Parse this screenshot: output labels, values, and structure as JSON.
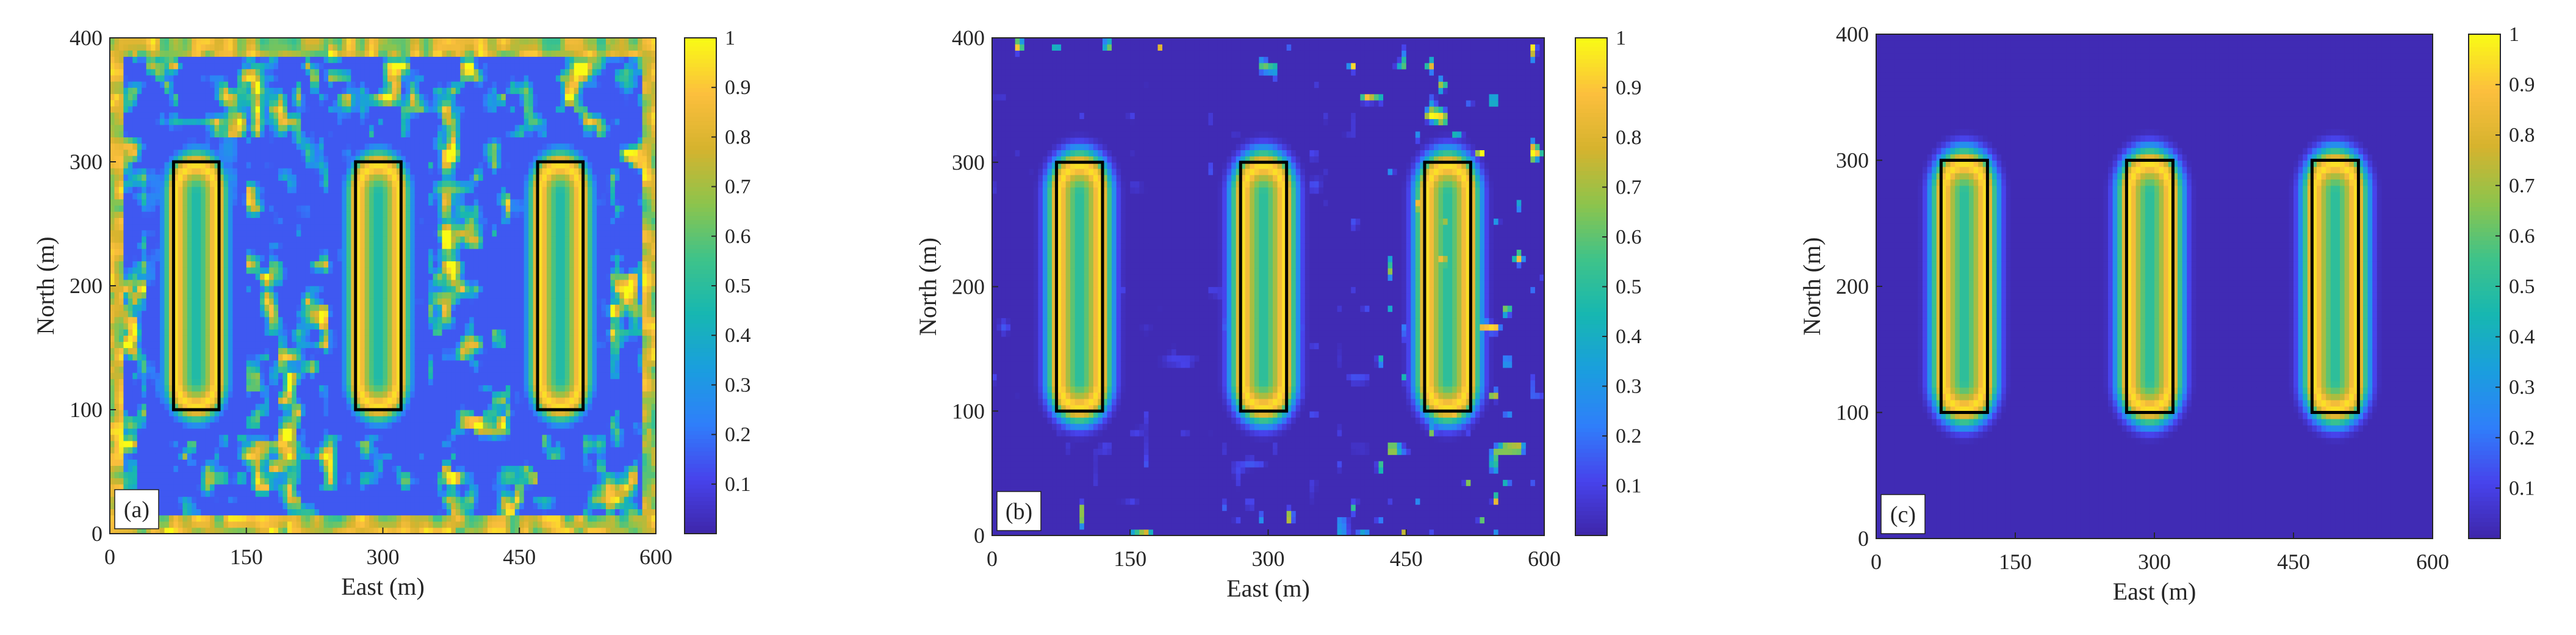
{
  "figure": {
    "panel_labels": [
      "(a)",
      "(b)",
      "(c)"
    ]
  },
  "colors": {
    "colormap": [
      "#3e26a8",
      "#4743ec",
      "#2f7ffa",
      "#1a9ede",
      "#17b7b1",
      "#3ec38a",
      "#8dc44c",
      "#d6b32e",
      "#fcbf3d",
      "#f9fb15"
    ],
    "target_outline": "#000000",
    "axis": "#262626"
  },
  "chart_data": [
    {
      "type": "heatmap",
      "panel": "(a)",
      "xlabel": "East (m)",
      "ylabel": "North (m)",
      "xlim": [
        0,
        600
      ],
      "ylim": [
        0,
        400
      ],
      "xticks": [
        0,
        150,
        300,
        450,
        600
      ],
      "yticks": [
        0,
        100,
        200,
        300,
        400
      ],
      "colorbar": {
        "range": [
          0,
          1
        ],
        "ticks": [
          0.1,
          0.2,
          0.3,
          0.4,
          0.5,
          0.6,
          0.7,
          0.8,
          0.9,
          1
        ],
        "tick_labels": [
          "0.1",
          "0.2",
          "0.3",
          "0.4",
          "0.5",
          "0.6",
          "0.7",
          "0.8",
          "0.9",
          "1"
        ]
      },
      "targets": [
        {
          "x": [
            70,
            120
          ],
          "y": [
            100,
            300
          ]
        },
        {
          "x": [
            270,
            320
          ],
          "y": [
            100,
            300
          ]
        },
        {
          "x": [
            470,
            520
          ],
          "y": [
            100,
            300
          ]
        }
      ],
      "field": {
        "grid": [
          60,
          40
        ],
        "ring_values": {
          "edge": 0.95,
          "core": 0.25
        },
        "background": 0.15,
        "clutter_level": "high",
        "edge_ring": true
      }
    },
    {
      "type": "heatmap",
      "panel": "(b)",
      "xlabel": "East (m)",
      "ylabel": "North (m)",
      "xlim": [
        0,
        600
      ],
      "ylim": [
        0,
        400
      ],
      "xticks": [
        0,
        150,
        300,
        450,
        600
      ],
      "yticks": [
        0,
        100,
        200,
        300,
        400
      ],
      "colorbar": {
        "range": [
          0,
          1
        ],
        "ticks": [
          0.1,
          0.2,
          0.3,
          0.4,
          0.5,
          0.6,
          0.7,
          0.8,
          0.9,
          1
        ],
        "tick_labels": [
          "0.1",
          "0.2",
          "0.3",
          "0.4",
          "0.5",
          "0.6",
          "0.7",
          "0.8",
          "0.9",
          "1"
        ]
      },
      "targets": [
        {
          "x": [
            70,
            120
          ],
          "y": [
            100,
            300
          ]
        },
        {
          "x": [
            270,
            320
          ],
          "y": [
            100,
            300
          ]
        },
        {
          "x": [
            470,
            520
          ],
          "y": [
            100,
            300
          ]
        }
      ],
      "field": {
        "grid": [
          60,
          40
        ],
        "ring_values": {
          "edge": 0.95,
          "core": 0.3
        },
        "background": 0.02,
        "clutter_level": "low",
        "edge_ring": false
      }
    },
    {
      "type": "heatmap",
      "panel": "(c)",
      "xlabel": "East (m)",
      "ylabel": "North (m)",
      "xlim": [
        0,
        600
      ],
      "ylim": [
        0,
        400
      ],
      "xticks": [
        0,
        150,
        300,
        450,
        600
      ],
      "yticks": [
        0,
        100,
        200,
        300,
        400
      ],
      "colorbar": {
        "range": [
          0,
          1
        ],
        "ticks": [
          0.1,
          0.2,
          0.3,
          0.4,
          0.5,
          0.6,
          0.7,
          0.8,
          0.9,
          1
        ],
        "tick_labels": [
          "0.1",
          "0.2",
          "0.3",
          "0.4",
          "0.5",
          "0.6",
          "0.7",
          "0.8",
          "0.9",
          "1"
        ]
      },
      "targets": [
        {
          "x": [
            70,
            120
          ],
          "y": [
            100,
            300
          ]
        },
        {
          "x": [
            270,
            320
          ],
          "y": [
            100,
            300
          ]
        },
        {
          "x": [
            470,
            520
          ],
          "y": [
            100,
            300
          ]
        }
      ],
      "field": {
        "grid": [
          60,
          40
        ],
        "ring_values": {
          "edge": 0.95,
          "core": 0.3
        },
        "background": 0.02,
        "clutter_level": "none",
        "edge_ring": false
      }
    }
  ]
}
